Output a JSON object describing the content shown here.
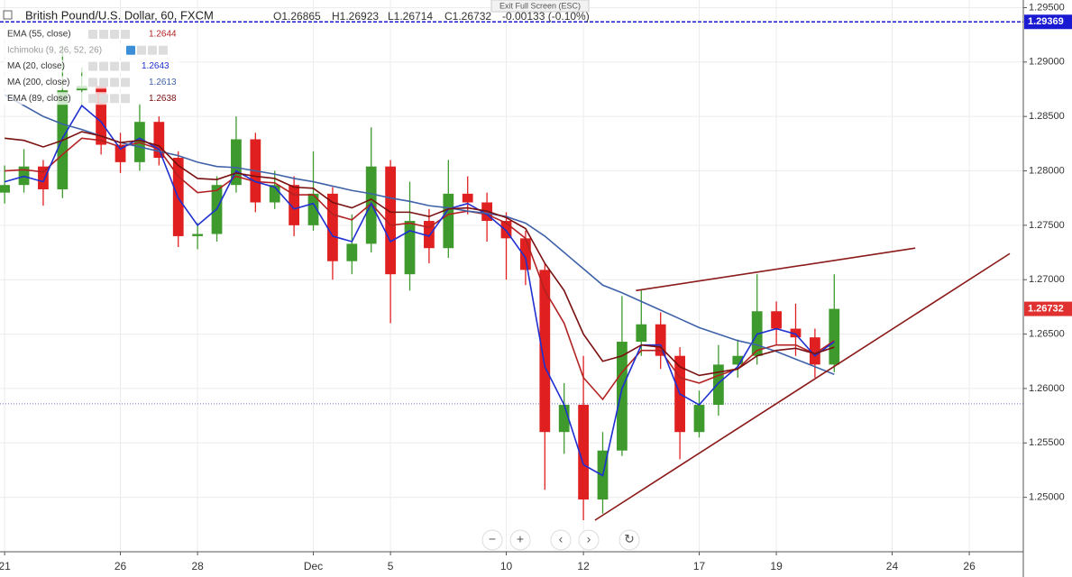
{
  "chart_data": {
    "type": "candlestick",
    "title": "British Pound/U.S. Dollar, 60, FXCM",
    "ohlc_labels": [
      "O1.26865",
      "H1.26923",
      "L1.26714",
      "C1.26732"
    ],
    "change_label": "-0.00133 (-0.10%)",
    "tooltip": "Exit Full Screen (ESC)",
    "x": [
      0,
      0.5,
      1,
      1.5,
      2,
      2.5,
      3,
      3.5,
      4,
      4.5,
      5,
      5.5,
      6,
      6.5,
      7,
      7.5,
      8,
      8.5,
      9,
      9.5,
      10,
      10.5,
      11,
      11.5,
      12,
      12.5,
      13,
      13.5,
      14,
      14.5,
      15,
      15.5,
      16,
      16.5,
      17,
      17.5,
      18,
      18.5,
      19,
      19.5,
      20,
      20.5,
      21,
      21.5
    ],
    "open": [
      1.278,
      1.2787,
      1.2804,
      1.2783,
      1.2874,
      1.2878,
      1.2824,
      1.2808,
      1.2845,
      1.2812,
      1.274,
      1.2742,
      1.2787,
      1.2829,
      1.2771,
      1.2787,
      1.275,
      1.2779,
      1.2717,
      1.2733,
      1.2804,
      1.2705,
      1.2754,
      1.2729,
      1.2779,
      1.2771,
      1.2754,
      1.2738,
      1.2709,
      1.256,
      1.2585,
      1.2498,
      1.2543,
      1.2643,
      1.2659,
      1.263,
      1.256,
      1.2585,
      1.2622,
      1.263,
      1.2671,
      1.2655,
      1.2647,
      1.2622
    ],
    "high": [
      1.2805,
      1.282,
      1.281,
      1.2915,
      1.2895,
      1.2882,
      1.2835,
      1.2862,
      1.285,
      1.2818,
      1.2752,
      1.2795,
      1.285,
      1.2835,
      1.28,
      1.2795,
      1.2818,
      1.2785,
      1.276,
      1.284,
      1.281,
      1.279,
      1.2765,
      1.281,
      1.2795,
      1.278,
      1.2762,
      1.2745,
      1.2715,
      1.2605,
      1.263,
      1.256,
      1.2685,
      1.269,
      1.267,
      1.2638,
      1.2598,
      1.264,
      1.2645,
      1.2705,
      1.268,
      1.2678,
      1.2655,
      1.2705
    ],
    "low": [
      1.277,
      1.278,
      1.2768,
      1.2775,
      1.286,
      1.2815,
      1.2798,
      1.28,
      1.2805,
      1.273,
      1.2728,
      1.2735,
      1.278,
      1.2762,
      1.2765,
      1.274,
      1.2745,
      1.27,
      1.2705,
      1.2725,
      1.266,
      1.269,
      1.2715,
      1.272,
      1.276,
      1.2735,
      1.27,
      1.2695,
      1.2507,
      1.254,
      1.2479,
      1.2485,
      1.2538,
      1.263,
      1.2618,
      1.2535,
      1.2555,
      1.2575,
      1.261,
      1.2622,
      1.264,
      1.263,
      1.261,
      1.2615
    ],
    "close": [
      1.2787,
      1.2804,
      1.2783,
      1.2874,
      1.2878,
      1.2824,
      1.2808,
      1.2845,
      1.2812,
      1.274,
      1.2742,
      1.2787,
      1.2829,
      1.2771,
      1.2787,
      1.275,
      1.2779,
      1.2717,
      1.2733,
      1.2804,
      1.2705,
      1.2754,
      1.2729,
      1.2779,
      1.2771,
      1.2754,
      1.2738,
      1.2709,
      1.256,
      1.2585,
      1.2498,
      1.2543,
      1.2643,
      1.2659,
      1.263,
      1.256,
      1.2585,
      1.2622,
      1.263,
      1.2671,
      1.2655,
      1.2647,
      1.2622,
      1.26732
    ],
    "up_color": "#3f9a2e",
    "down_color": "#e02020",
    "series": [
      {
        "name": "EMA (55, close)",
        "color": "#b22222",
        "legend_value": "1.2644",
        "values": [
          1.28,
          1.2801,
          1.2799,
          1.2815,
          1.283,
          1.2828,
          1.2822,
          1.2826,
          1.282,
          1.2795,
          1.278,
          1.2782,
          1.2795,
          1.279,
          1.2789,
          1.2778,
          1.2778,
          1.276,
          1.2755,
          1.277,
          1.275,
          1.2752,
          1.2748,
          1.276,
          1.2763,
          1.276,
          1.2752,
          1.2738,
          1.269,
          1.266,
          1.261,
          1.259,
          1.2615,
          1.2635,
          1.2635,
          1.261,
          1.2605,
          1.2612,
          1.2618,
          1.2635,
          1.264,
          1.264,
          1.2632,
          1.2644
        ]
      },
      {
        "name": "MA (20, close)",
        "color": "#1f2fd0",
        "legend_value": "1.2643",
        "values": [
          1.279,
          1.2795,
          1.279,
          1.283,
          1.286,
          1.2845,
          1.282,
          1.283,
          1.282,
          1.2775,
          1.275,
          1.2765,
          1.28,
          1.279,
          1.2785,
          1.2765,
          1.277,
          1.274,
          1.2735,
          1.277,
          1.2735,
          1.2745,
          1.274,
          1.2765,
          1.277,
          1.276,
          1.2745,
          1.272,
          1.262,
          1.2585,
          1.253,
          1.252,
          1.26,
          1.264,
          1.264,
          1.2595,
          1.2585,
          1.2605,
          1.262,
          1.265,
          1.2655,
          1.265,
          1.263,
          1.2643
        ]
      },
      {
        "name": "MA (200, close)",
        "color": "#3f62a8",
        "legend_value": "1.2613",
        "values": [
          1.287,
          1.286,
          1.285,
          1.2843,
          1.2838,
          1.2832,
          1.2826,
          1.2822,
          1.2818,
          1.2814,
          1.2808,
          1.2804,
          1.2803,
          1.28,
          1.2797,
          1.2793,
          1.279,
          1.2786,
          1.2782,
          1.2779,
          1.2775,
          1.2772,
          1.2768,
          1.2766,
          1.2763,
          1.2761,
          1.2758,
          1.2752,
          1.274,
          1.2725,
          1.271,
          1.2695,
          1.2688,
          1.268,
          1.2672,
          1.2664,
          1.2656,
          1.265,
          1.2644,
          1.264,
          1.2634,
          1.2627,
          1.262,
          1.2613
        ]
      },
      {
        "name": "EMA (89, close)",
        "color": "#7a1010",
        "legend_value": "1.2638",
        "values": [
          1.283,
          1.2828,
          1.2822,
          1.2828,
          1.2836,
          1.2832,
          1.2826,
          1.2828,
          1.2823,
          1.2805,
          1.2793,
          1.2792,
          1.2798,
          1.2795,
          1.2793,
          1.2785,
          1.2784,
          1.2771,
          1.2766,
          1.2774,
          1.2762,
          1.2762,
          1.2758,
          1.2765,
          1.2766,
          1.2763,
          1.2757,
          1.2747,
          1.2715,
          1.269,
          1.265,
          1.2625,
          1.263,
          1.264,
          1.2638,
          1.262,
          1.2612,
          1.2615,
          1.2618,
          1.263,
          1.2635,
          1.2637,
          1.2632,
          1.2638
        ]
      }
    ],
    "hidden_indicator": {
      "name": "Ichimoku (9, 26, 52, 26)"
    },
    "trend_lines": [
      {
        "color": "#8b1a1a",
        "x": [
          16.36,
          23.6
        ],
        "y": [
          1.269,
          1.2729
        ]
      },
      {
        "color": "#8b1a1a",
        "x": [
          15.3,
          26.05
        ],
        "y": [
          1.2479,
          1.2724
        ]
      }
    ],
    "price_lines": [
      {
        "value": 1.29369,
        "color": "#1a1ad2",
        "dash": "dashed",
        "label_box": true
      },
      {
        "value": 1.26732,
        "color": "#e03030",
        "dash": "none",
        "label_box": true
      },
      {
        "value": 1.2586,
        "color": "#7070d0",
        "dash": "dotted",
        "label_box": false
      }
    ],
    "xlim": [
      -0.12,
      26.4
    ],
    "ylim": [
      1.245,
      1.2957
    ],
    "xticks": [
      {
        "value": 0,
        "label": "21"
      },
      {
        "value": 3,
        "label": "26"
      },
      {
        "value": 5,
        "label": "28"
      },
      {
        "value": 8,
        "label": "Dec"
      },
      {
        "value": 10,
        "label": "5"
      },
      {
        "value": 13,
        "label": "10"
      },
      {
        "value": 15,
        "label": "12"
      },
      {
        "value": 18,
        "label": "17"
      },
      {
        "value": 20,
        "label": "19"
      },
      {
        "value": 23,
        "label": "24"
      },
      {
        "value": 25,
        "label": "26"
      }
    ],
    "yticks": [
      {
        "value": 1.295,
        "label": "1.29500"
      },
      {
        "value": 1.29,
        "label": "1.29000"
      },
      {
        "value": 1.285,
        "label": "1.28500"
      },
      {
        "value": 1.28,
        "label": "1.28000"
      },
      {
        "value": 1.275,
        "label": "1.27500"
      },
      {
        "value": 1.27,
        "label": "1.27000"
      },
      {
        "value": 1.265,
        "label": "1.26500"
      },
      {
        "value": 1.26,
        "label": "1.26000"
      },
      {
        "value": 1.255,
        "label": "1.25500"
      },
      {
        "value": 1.25,
        "label": "1.25000"
      }
    ],
    "grid": true
  }
}
